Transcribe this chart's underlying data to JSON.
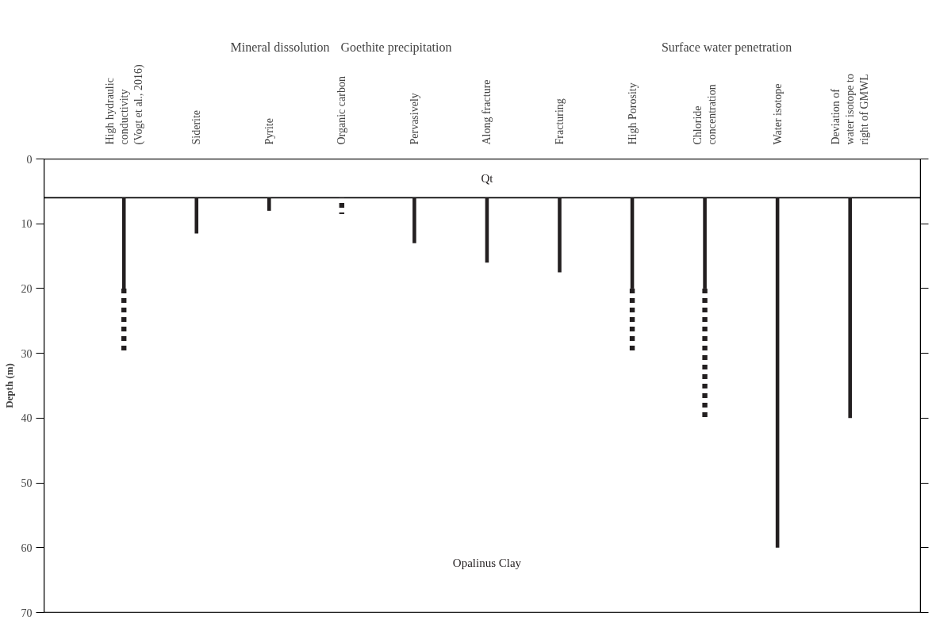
{
  "chart_data": {
    "type": "bar",
    "categories": [
      "High hydraulic\nconductivity\n(Vogt et al., 2016)",
      "Siderite",
      "Pyrite",
      "Organic carbon",
      "Pervasively",
      "Along fracture",
      "Fracturing",
      "High Porosity",
      "Chloride\nconcentration",
      "Water isotope",
      "Deviation of\nwater isotope to\nright of GMWL"
    ],
    "series": [
      {
        "color": "#231f20",
        "line_style": "solid",
        "base": [
          6,
          6,
          6,
          null,
          6,
          6,
          6,
          6,
          6,
          6,
          6
        ],
        "values": [
          14,
          5.5,
          2,
          null,
          7,
          10,
          11.5,
          14,
          14,
          54,
          34
        ]
      },
      {
        "color": "#231f20",
        "line_style": "dashed",
        "base": [
          20,
          null,
          null,
          6,
          null,
          null,
          null,
          20,
          20,
          null,
          null
        ],
        "values": [
          10,
          null,
          null,
          2.5,
          null,
          null,
          null,
          10,
          20,
          null,
          null
        ]
      }
    ],
    "ylim": [
      70,
      0
    ],
    "yticks": [
      0,
      10,
      20,
      30,
      40,
      50,
      60,
      70
    ],
    "ylabel": "Depth (m)",
    "bands": [
      {
        "axis": "y",
        "from": 0,
        "to": 6,
        "label": "Qt",
        "color": "#ffffff"
      },
      {
        "axis": "y",
        "from": 6,
        "to": 70,
        "label": "Opalinus Clay",
        "color": "#ffffff"
      }
    ],
    "annotations": [
      "Mineral dissolution",
      "Goethite precipitation",
      "Surface water penetration"
    ]
  }
}
